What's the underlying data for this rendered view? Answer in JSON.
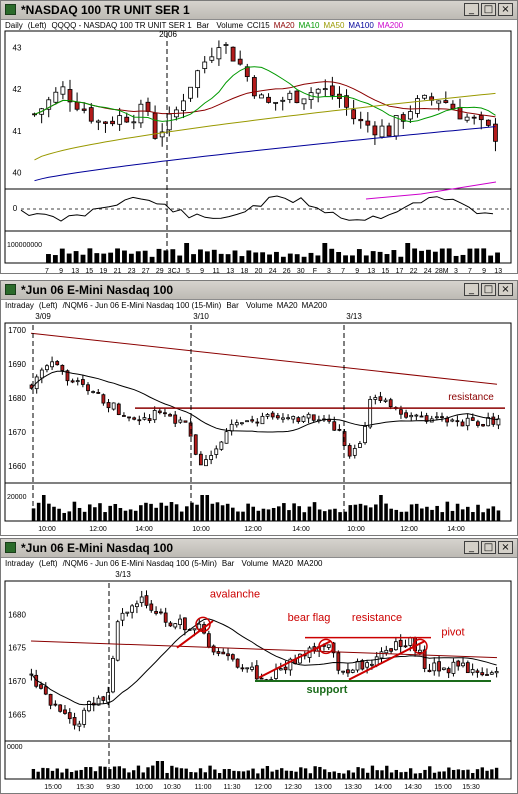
{
  "panels": [
    {
      "title": "*NASDAQ 100 TR UNIT SER 1",
      "interval": "Daily",
      "axis_side": "(Left)",
      "symbol_line": "QQQQ - NASDAQ 100 TR UNIT SER 1",
      "chart_type": "Bar",
      "indicators": [
        {
          "label": "Volume",
          "color": "#000000"
        },
        {
          "label": "CCI15",
          "color": "#000000"
        },
        {
          "label": "MA20",
          "color": "#8b0000"
        },
        {
          "label": "MA10",
          "color": "#009900"
        },
        {
          "label": "MA50",
          "color": "#999900"
        },
        {
          "label": "MA100",
          "color": "#000099"
        },
        {
          "label": "MA200",
          "color": "#cc00cc"
        }
      ],
      "period_label": "2006",
      "y_ticks": [
        "43",
        "42",
        "41",
        "40"
      ],
      "cci_tick": "0",
      "volume_tick": "100000000",
      "x_ticks": [
        "7",
        "9",
        "13",
        "15",
        "19",
        "21",
        "23",
        "27",
        "29",
        "3CJ",
        "5",
        "9",
        "11",
        "13",
        "18",
        "20",
        "24",
        "26",
        "30",
        "F",
        "3",
        "7",
        "9",
        "13",
        "15",
        "17",
        "22",
        "24",
        "28M",
        "3",
        "7",
        "9",
        "13"
      ]
    },
    {
      "title": "*Jun 06  E-Mini Nasdaq 100",
      "interval": "Intraday",
      "axis_side": "(Left)",
      "symbol_line": "/NQM6 - Jun 06 E-Mini Nasdaq 100 (15-Min)",
      "chart_type": "Bar",
      "indicators": [
        {
          "label": "Volume",
          "color": "#000000"
        },
        {
          "label": "MA20",
          "color": "#000000"
        },
        {
          "label": "MA200",
          "color": "#000000"
        }
      ],
      "date_labels": [
        "3/09",
        "3/10",
        "3/13"
      ],
      "y_ticks": [
        "1700",
        "1690",
        "1680",
        "1670",
        "1660"
      ],
      "volume_tick": "20000",
      "x_ticks": [
        "10:00",
        "12:00",
        "14:00",
        "10:00",
        "12:00",
        "14:00",
        "10:00",
        "12:00",
        "14:00"
      ],
      "annotations": [
        "resistance"
      ]
    },
    {
      "title": "*Jun 06  E-Mini Nasdaq 100",
      "interval": "Intraday",
      "axis_side": "(Left)",
      "symbol_line": "/NQM6 - Jun 06 E-Mini Nasdaq 100 (5-Min)",
      "chart_type": "Bar",
      "indicators": [
        {
          "label": "Volume",
          "color": "#000000"
        },
        {
          "label": "MA20",
          "color": "#000000"
        },
        {
          "label": "MA200",
          "color": "#000000"
        }
      ],
      "date_labels": [
        "3/13"
      ],
      "y_ticks": [
        "1680",
        "1675",
        "1670",
        "1665"
      ],
      "volume_tick": "0000",
      "x_ticks": [
        "15:00",
        "15:30",
        "9:30",
        "10:00",
        "10:30",
        "11:00",
        "11:30",
        "12:00",
        "12:30",
        "13:00",
        "13:30",
        "14:00",
        "14:30",
        "15:00",
        "15:30"
      ],
      "annotations": [
        "avalanche",
        "bear flag",
        "resistance",
        "pivot",
        "support"
      ]
    }
  ],
  "window_buttons": {
    "minimize": "_",
    "maximize": "□",
    "close": "×"
  },
  "chart_data": [
    {
      "type": "candlestick",
      "title": "NASDAQ 100 TR UNIT SER 1 (QQQQ) Daily",
      "ylim": [
        39.6,
        43.4
      ],
      "trend": "rises from ~41 to 43.2 mid-January, sells off to ~41.2, drifts sideways 41-42 into March",
      "series": [
        {
          "name": "MA20",
          "approx_values": [
            42.0,
            41.9,
            42.4,
            42.2,
            41.6
          ]
        },
        {
          "name": "MA50",
          "approx_values": [
            40.3,
            40.9,
            41.7,
            41.9,
            41.8
          ]
        },
        {
          "name": "MA100",
          "approx_values": [
            39.8,
            40.3,
            40.7,
            41.0,
            41.1
          ]
        },
        {
          "name": "MA200",
          "approx_values": [
            39.6,
            39.8
          ]
        }
      ]
    },
    {
      "type": "candlestick",
      "title": "Jun 06 E-Mini Nasdaq 100 (15-Min)",
      "ylim": [
        1655,
        1702
      ],
      "annotations": [
        {
          "text": "resistance",
          "level": 1677
        }
      ],
      "trend": "falls from 1690 to 1657 into 3/10 open, recovers to range 1670-1677, dips to 1660 late 3/10, 3/13 gaps to 1680 then settles 1672"
    },
    {
      "type": "candlestick",
      "title": "Jun 06 E-Mini Nasdaq 100 (5-Min)",
      "ylim": [
        1661,
        1685
      ],
      "annotations": [
        {
          "text": "avalanche"
        },
        {
          "text": "bear flag"
        },
        {
          "text": "resistance",
          "level": 1676.5
        },
        {
          "text": "pivot"
        },
        {
          "text": "support",
          "level": 1670
        }
      ],
      "trend": "low 1662 late prior day, gap up to 1682 at 3/13 open, avalanche drop to 1670, bear flag, resistance 1676.5 holds, support 1670 holds"
    }
  ]
}
